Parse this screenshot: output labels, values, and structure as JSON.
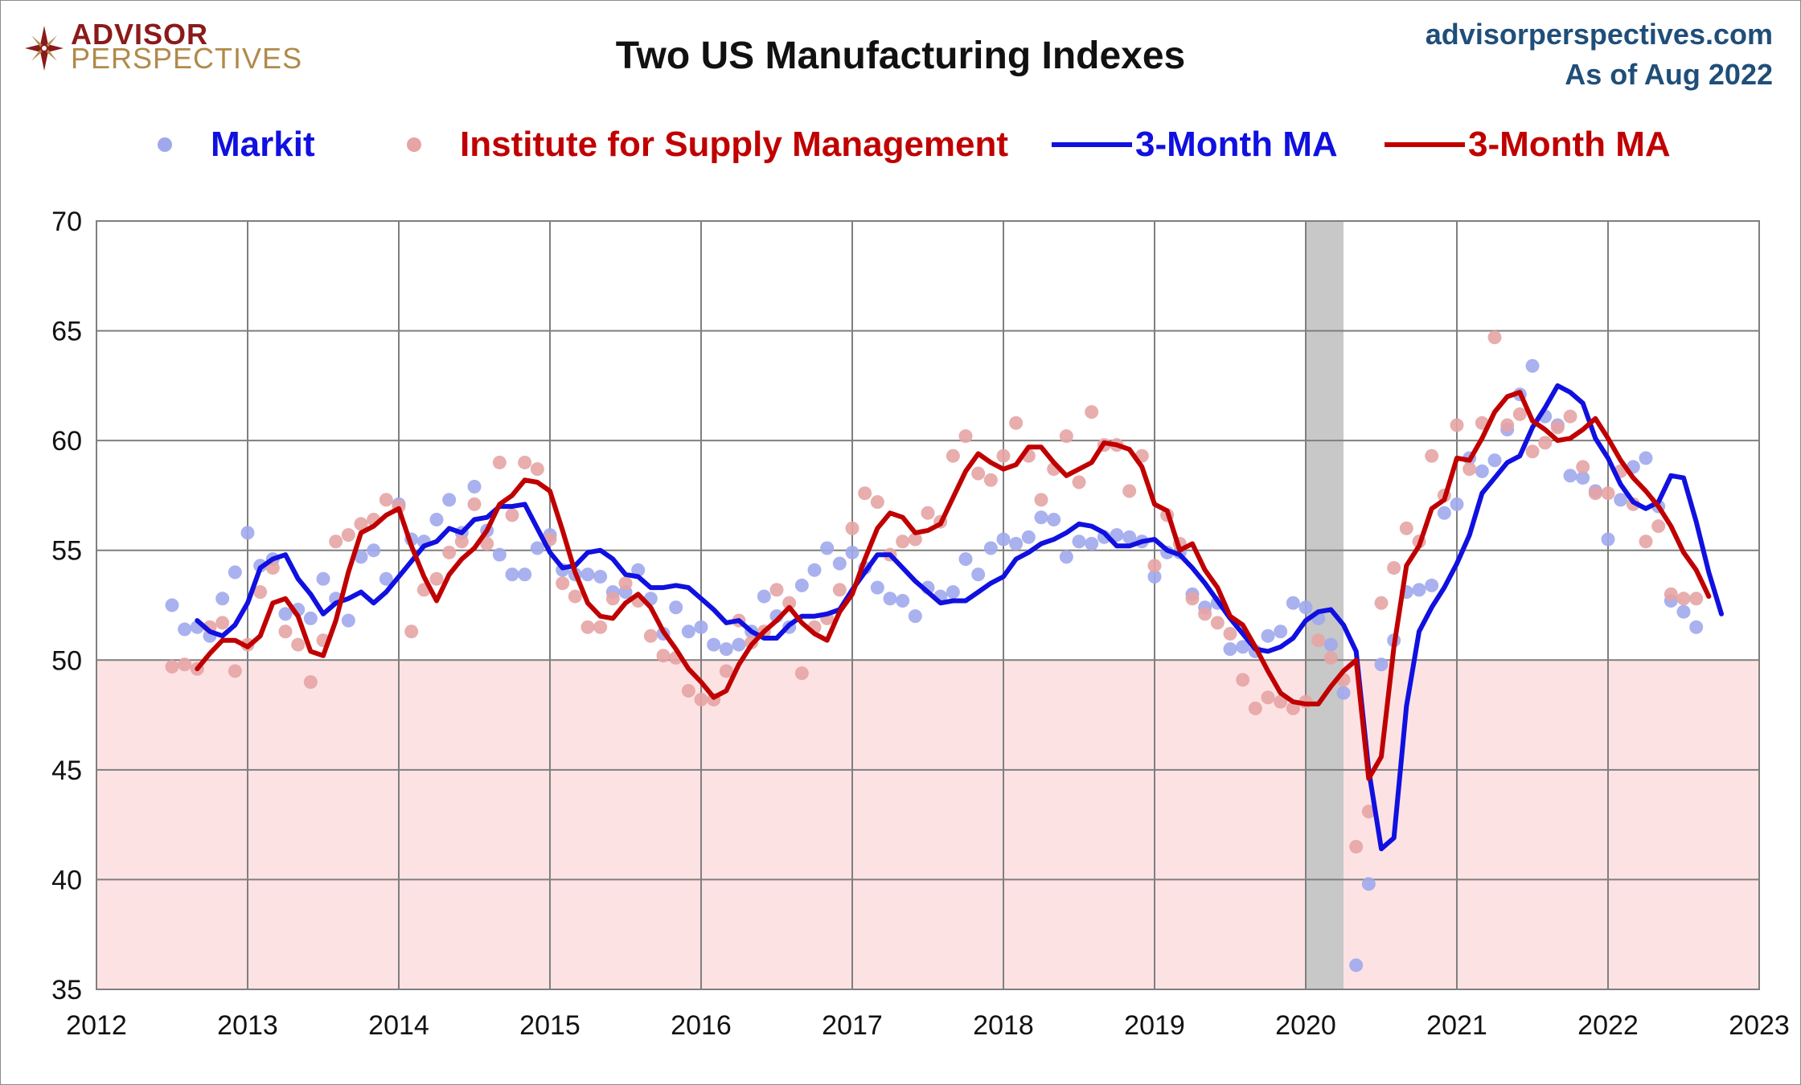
{
  "brand": {
    "logo_line1": "ADVISOR",
    "logo_line2": "PERSPECTIVES",
    "site": "advisorperspectives.com",
    "as_of": "As of Aug 2022"
  },
  "legend": {
    "markit": "Markit",
    "ism": "Institute for Supply Management",
    "markit_ma": "3-Month MA",
    "ism_ma": "3-Month MA"
  },
  "colors": {
    "markit": "#1010e0",
    "markit_dot": "#a0a8ec",
    "ism": "#c00000",
    "ism_dot": "#e6a4a4",
    "below50": "#fde2e4",
    "recession": "#c8c8c8",
    "grid": "#7f7f7f"
  },
  "chart_data": {
    "type": "scatter",
    "title": "Two US Manufacturing Indexes",
    "xlabel": "",
    "ylabel": "",
    "xlim": [
      2012,
      2023
    ],
    "ylim": [
      35,
      70
    ],
    "x_ticks": [
      2012,
      2013,
      2014,
      2015,
      2016,
      2017,
      2018,
      2019,
      2020,
      2021,
      2022,
      2023
    ],
    "y_ticks": [
      35,
      40,
      45,
      50,
      55,
      60,
      65,
      70
    ],
    "shaded_below": 50,
    "recession": [
      2020.0,
      2020.25
    ],
    "start": 2012.5,
    "step": 0.08333333,
    "series": [
      {
        "name": "Markit",
        "kind": "scatter",
        "values": [
          52.5,
          51.4,
          51.5,
          51.1,
          52.8,
          54.0,
          55.8,
          54.3,
          54.6,
          52.1,
          52.3,
          51.9,
          53.7,
          52.8,
          51.8,
          54.7,
          55.0,
          53.7,
          57.1,
          55.5,
          55.4,
          56.4,
          57.3,
          55.8,
          57.9,
          55.9,
          54.8,
          53.9,
          53.9,
          55.1,
          55.7,
          54.1,
          53.9,
          53.9,
          53.8,
          53.1,
          53.1,
          54.1,
          52.8,
          51.2,
          52.4,
          51.3,
          51.5,
          50.7,
          50.5,
          50.7,
          51.3,
          52.9,
          52.0,
          51.5,
          53.4,
          54.1,
          55.1,
          54.4,
          54.9,
          54.2,
          53.3,
          52.8,
          52.7,
          52.0,
          53.3,
          52.9,
          53.1,
          54.6,
          53.9,
          55.1,
          55.5,
          55.3,
          55.6,
          56.5,
          56.4,
          54.7,
          55.4,
          55.3,
          55.6,
          55.7,
          55.6,
          55.4,
          53.8,
          54.9,
          54.9,
          53.0,
          52.4,
          52.6,
          50.5,
          50.6,
          50.4,
          51.1,
          51.3,
          52.6,
          52.4,
          51.9,
          50.7,
          48.5,
          36.1,
          39.8,
          49.8,
          50.9,
          53.1,
          53.2,
          53.4,
          56.7,
          57.1,
          59.2,
          58.6,
          59.1,
          60.5,
          62.1,
          63.4,
          61.1,
          60.7,
          58.4,
          58.3,
          57.7,
          55.5,
          57.3,
          58.8,
          59.2,
          57.0,
          52.7,
          52.2,
          51.5
        ]
      },
      {
        "name": "Institute for Supply Management",
        "kind": "scatter",
        "values": [
          49.7,
          49.8,
          49.6,
          51.5,
          51.7,
          49.5,
          50.7,
          53.1,
          54.2,
          51.3,
          50.7,
          49.0,
          50.9,
          55.4,
          55.7,
          56.2,
          56.4,
          57.3,
          57.0,
          51.3,
          53.2,
          53.7,
          54.9,
          55.4,
          57.1,
          55.3,
          59.0,
          56.6,
          59.0,
          58.7,
          55.5,
          53.5,
          52.9,
          51.5,
          51.5,
          52.8,
          53.5,
          52.7,
          51.1,
          50.2,
          50.1,
          48.6,
          48.2,
          48.2,
          49.5,
          51.8,
          50.8,
          51.3,
          53.2,
          52.6,
          49.4,
          51.5,
          51.9,
          53.2,
          56.0,
          57.6,
          57.2,
          54.8,
          55.4,
          55.5,
          56.7,
          56.3,
          59.3,
          60.2,
          58.5,
          58.2,
          59.3,
          60.8,
          59.3,
          57.3,
          58.7,
          60.2,
          58.1,
          61.3,
          59.8,
          59.8,
          57.7,
          59.3,
          54.3,
          56.6,
          55.3,
          52.8,
          52.1,
          51.7,
          51.2,
          49.1,
          47.8,
          48.3,
          48.1,
          47.8,
          48.1,
          50.9,
          50.1,
          49.1,
          41.5,
          43.1,
          52.6,
          54.2,
          56.0,
          55.4,
          59.3,
          57.5,
          60.7,
          58.7,
          60.8,
          64.7,
          60.7,
          61.2,
          59.5,
          59.9,
          60.6,
          61.1,
          58.8,
          57.6,
          57.6,
          58.6,
          57.1,
          55.4,
          56.1,
          53.0,
          52.8,
          52.8
        ]
      },
      {
        "name": "Markit 3-Month MA",
        "kind": "line",
        "values": [
          null,
          null,
          51.8,
          51.3,
          51.1,
          51.6,
          52.6,
          54.2,
          54.6,
          54.8,
          53.7,
          53.0,
          52.1,
          52.6,
          52.8,
          53.1,
          52.6,
          53.1,
          53.8,
          54.5,
          55.2,
          55.4,
          56.0,
          55.8,
          56.4,
          56.5,
          57.0,
          57.0,
          57.1,
          56.0,
          54.9,
          54.2,
          54.3,
          54.9,
          55.0,
          54.6,
          53.9,
          53.8,
          53.3,
          53.3,
          53.4,
          53.3,
          52.8,
          52.3,
          51.7,
          51.8,
          51.3,
          51.0,
          51.0,
          51.6,
          52.0,
          52.0,
          52.1,
          52.3,
          53.2,
          54.0,
          54.8,
          54.8,
          54.2,
          53.6,
          53.1,
          52.6,
          52.7,
          52.7,
          53.1,
          53.5,
          53.8,
          54.6,
          54.9,
          55.3,
          55.5,
          55.8,
          56.2,
          56.1,
          55.8,
          55.2,
          55.2,
          55.4,
          55.5,
          55.0,
          54.8,
          54.2,
          53.5,
          52.7,
          51.9,
          51.2,
          50.5,
          50.4,
          50.6,
          51.0,
          51.8,
          52.2,
          52.3,
          51.6,
          50.4,
          45.0,
          41.4,
          41.9,
          47.9,
          51.3,
          52.4,
          53.3,
          54.4,
          55.7,
          57.6,
          58.3,
          59.0,
          59.3,
          60.6,
          61.5,
          62.5,
          62.2,
          61.7,
          60.1,
          59.2,
          58.0,
          57.2,
          56.9,
          57.2,
          58.4,
          58.3,
          56.3,
          54.0,
          52.1
        ]
      },
      {
        "name": "ISM 3-Month MA",
        "kind": "line",
        "values": [
          null,
          null,
          49.6,
          50.3,
          50.9,
          50.9,
          50.6,
          51.1,
          52.6,
          52.8,
          52.0,
          50.4,
          50.2,
          51.8,
          54.0,
          55.8,
          56.1,
          56.6,
          56.9,
          55.2,
          53.8,
          52.7,
          53.9,
          54.6,
          55.1,
          55.9,
          57.1,
          57.5,
          58.2,
          58.1,
          57.7,
          55.9,
          54.0,
          52.6,
          52.0,
          51.9,
          52.6,
          53.0,
          52.4,
          51.3,
          50.5,
          49.6,
          49.0,
          48.3,
          48.6,
          49.8,
          50.7,
          51.3,
          51.8,
          52.4,
          51.7,
          51.2,
          50.9,
          52.2,
          53.0,
          54.6,
          56.0,
          56.7,
          56.5,
          55.8,
          55.9,
          56.2,
          57.4,
          58.6,
          59.4,
          59.0,
          58.7,
          58.9,
          59.7,
          59.7,
          59.0,
          58.4,
          58.7,
          59.0,
          59.9,
          59.8,
          59.6,
          58.8,
          57.1,
          56.8,
          55.0,
          55.3,
          54.1,
          53.3,
          52.0,
          51.6,
          50.6,
          49.5,
          48.5,
          48.1,
          48.0,
          48.0,
          48.8,
          49.5,
          50.0,
          44.6,
          45.6,
          50.6,
          54.3,
          55.2,
          56.9,
          57.3,
          59.2,
          59.1,
          60.1,
          61.3,
          62.0,
          62.2,
          60.9,
          60.5,
          60.0,
          60.1,
          60.5,
          61.0,
          60.1,
          59.1,
          58.3,
          57.7,
          57.0,
          56.1,
          54.9,
          54.1,
          52.9
        ]
      }
    ]
  }
}
